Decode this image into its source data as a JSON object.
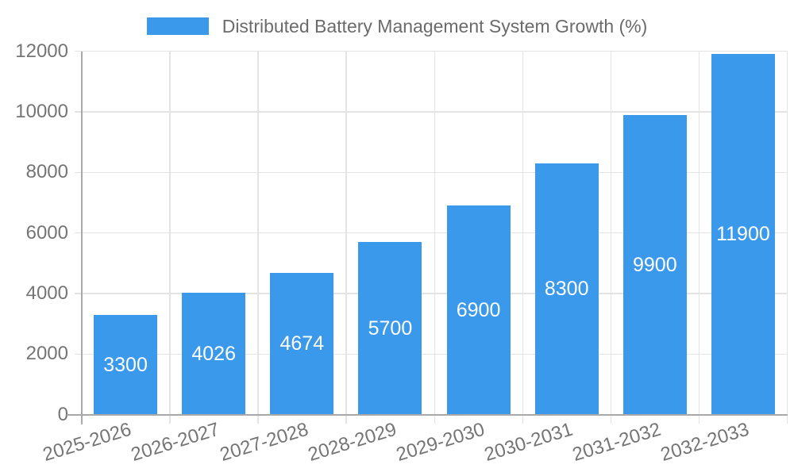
{
  "chart_data": {
    "type": "bar",
    "title": "",
    "legend_label": "Distributed Battery Management System Growth (%)",
    "legend_position": "top-center",
    "categories": [
      "2025-2026",
      "2026-2027",
      "2027-2028",
      "2028-2029",
      "2029-2030",
      "2030-2031",
      "2031-2032",
      "2032-2033"
    ],
    "values": [
      3300,
      4026,
      4674,
      5700,
      6900,
      8300,
      9900,
      11900
    ],
    "bar_labels": [
      "3300",
      "4026",
      "4674",
      "5700",
      "6900",
      "8300",
      "9900",
      "11900"
    ],
    "xlabel": "",
    "ylabel": "",
    "ylim": [
      0,
      12000
    ],
    "yticks": [
      0,
      2000,
      4000,
      6000,
      8000,
      10000,
      12000
    ],
    "grid": true,
    "x_tick_label_rotation_deg": -17,
    "colors": {
      "bar": "#3b99eb",
      "grid": "#e3e3e3",
      "axis": "#a9a9a9",
      "tick_text": "#757575",
      "legend_text": "#6b6b6b",
      "bar_label_text": "#ffffff",
      "background": "#ffffff"
    }
  }
}
